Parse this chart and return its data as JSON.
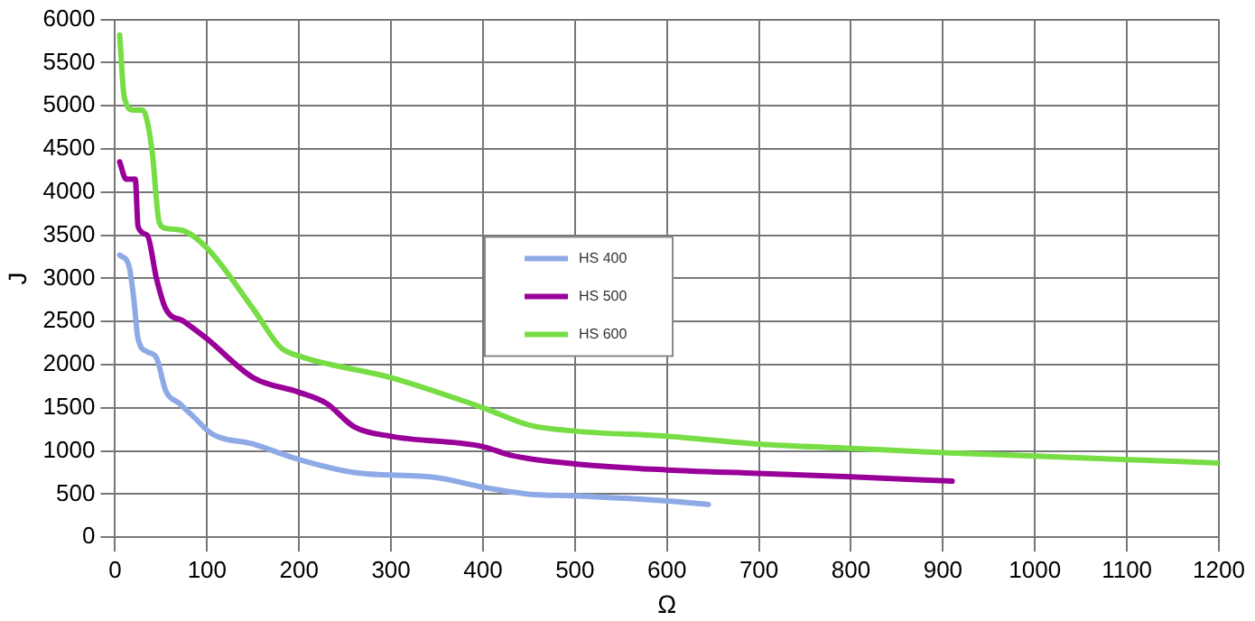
{
  "chart_data": {
    "type": "line",
    "xlabel": "Ω",
    "ylabel": "J",
    "xlim": [
      0,
      1200
    ],
    "ylim": [
      0,
      6000
    ],
    "xticks": [
      0,
      100,
      200,
      300,
      400,
      500,
      600,
      700,
      800,
      900,
      1000,
      1100,
      1200
    ],
    "yticks": [
      0,
      500,
      1000,
      1500,
      2000,
      2500,
      3000,
      3500,
      4000,
      4500,
      5000,
      5500,
      6000
    ],
    "grid": true,
    "legend": "center",
    "marker": "none",
    "line_style": "solid",
    "series": [
      {
        "name": "HS 400",
        "color": "#8eaae6",
        "x": [
          5,
          15,
          20,
          25,
          35,
          45,
          55,
          70,
          85,
          105,
          150,
          200,
          260,
          350,
          400,
          450,
          500,
          600,
          645
        ],
        "values": [
          3270,
          3150,
          2800,
          2300,
          2150,
          2080,
          1700,
          1550,
          1400,
          1200,
          1080,
          900,
          750,
          690,
          580,
          500,
          480,
          420,
          380
        ]
      },
      {
        "name": "HS 500",
        "color": "#990099",
        "x": [
          5,
          12,
          22,
          25,
          35,
          45,
          55,
          75,
          100,
          150,
          200,
          230,
          260,
          300,
          400,
          430,
          500,
          600,
          700,
          800,
          910
        ],
        "values": [
          4350,
          4150,
          4150,
          3600,
          3500,
          3000,
          2650,
          2500,
          2300,
          1850,
          1680,
          1550,
          1280,
          1170,
          1050,
          950,
          850,
          780,
          740,
          700,
          650
        ]
      },
      {
        "name": "HS 600",
        "color": "#77dd44",
        "x": [
          5,
          10,
          20,
          30,
          40,
          48,
          55,
          75,
          100,
          150,
          180,
          200,
          300,
          400,
          450,
          500,
          600,
          700,
          800,
          900,
          1000,
          1100,
          1200
        ],
        "values": [
          5820,
          5100,
          4950,
          4950,
          4500,
          3650,
          3580,
          3550,
          3350,
          2650,
          2200,
          2100,
          1850,
          1500,
          1300,
          1230,
          1170,
          1080,
          1030,
          980,
          940,
          900,
          860
        ]
      }
    ]
  }
}
